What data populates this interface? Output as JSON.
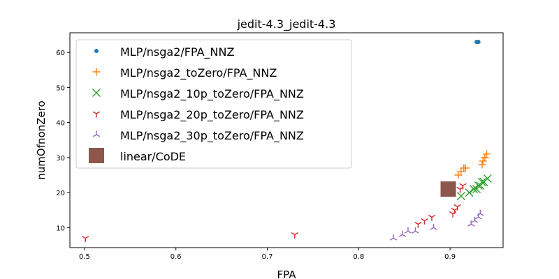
{
  "chart_data": {
    "type": "scatter",
    "title": "jedit-4.3_jedit-4.3",
    "xlabel": "FPA",
    "ylabel": "numOfnonZero",
    "xlim": [
      0.484,
      0.958
    ],
    "ylim": [
      4.3,
      65.6
    ],
    "xticks": [
      0.5,
      0.6,
      0.7,
      0.8,
      0.9
    ],
    "yticks": [
      10,
      20,
      30,
      40,
      50,
      60
    ],
    "grid": false,
    "legend_position": "upper-left",
    "series": [
      {
        "name": "MLP/nsga2/FPA_NNZ",
        "marker": "dot",
        "color": "#1f77b4",
        "points": [
          [
            0.929,
            63
          ],
          [
            0.931,
            63
          ],
          [
            0.93,
            63
          ]
        ]
      },
      {
        "name": "MLP/nsga2_toZero/FPA_NNZ",
        "marker": "plus",
        "color": "#ff7f0e",
        "points": [
          [
            0.909,
            25
          ],
          [
            0.912,
            26
          ],
          [
            0.915,
            27
          ],
          [
            0.917,
            27
          ],
          [
            0.935,
            28
          ],
          [
            0.936,
            29
          ],
          [
            0.938,
            30
          ],
          [
            0.94,
            31
          ]
        ]
      },
      {
        "name": "MLP/nsga2_10p_toZero/FPA_NNZ",
        "marker": "x",
        "color": "#2ca02c",
        "points": [
          [
            0.912,
            19
          ],
          [
            0.921,
            20
          ],
          [
            0.926,
            21
          ],
          [
            0.929,
            21
          ],
          [
            0.931,
            22
          ],
          [
            0.933,
            22
          ],
          [
            0.935,
            23
          ],
          [
            0.937,
            23
          ],
          [
            0.941,
            24
          ]
        ]
      },
      {
        "name": "MLP/nsga2_20p_toZero/FPA_NNZ",
        "marker": "tri_down",
        "color": "#d62728",
        "points": [
          [
            0.501,
            7
          ],
          [
            0.73,
            8
          ],
          [
            0.865,
            11
          ],
          [
            0.872,
            12
          ],
          [
            0.88,
            13
          ],
          [
            0.903,
            14
          ],
          [
            0.905,
            15
          ],
          [
            0.908,
            16
          ],
          [
            0.911,
            21
          ],
          [
            0.914,
            22
          ]
        ]
      },
      {
        "name": "MLP/nsga2_30p_toZero/FPA_NNZ",
        "marker": "tri_up",
        "color": "#9467bd",
        "points": [
          [
            0.838,
            7
          ],
          [
            0.848,
            8
          ],
          [
            0.854,
            9
          ],
          [
            0.862,
            9
          ],
          [
            0.882,
            10
          ],
          [
            0.923,
            11
          ],
          [
            0.927,
            12
          ],
          [
            0.931,
            13
          ],
          [
            0.933,
            14
          ]
        ]
      },
      {
        "name": "linear/CoDE",
        "marker": "square",
        "color": "#8c564b",
        "points": [
          [
            0.898,
            21
          ]
        ]
      }
    ]
  }
}
